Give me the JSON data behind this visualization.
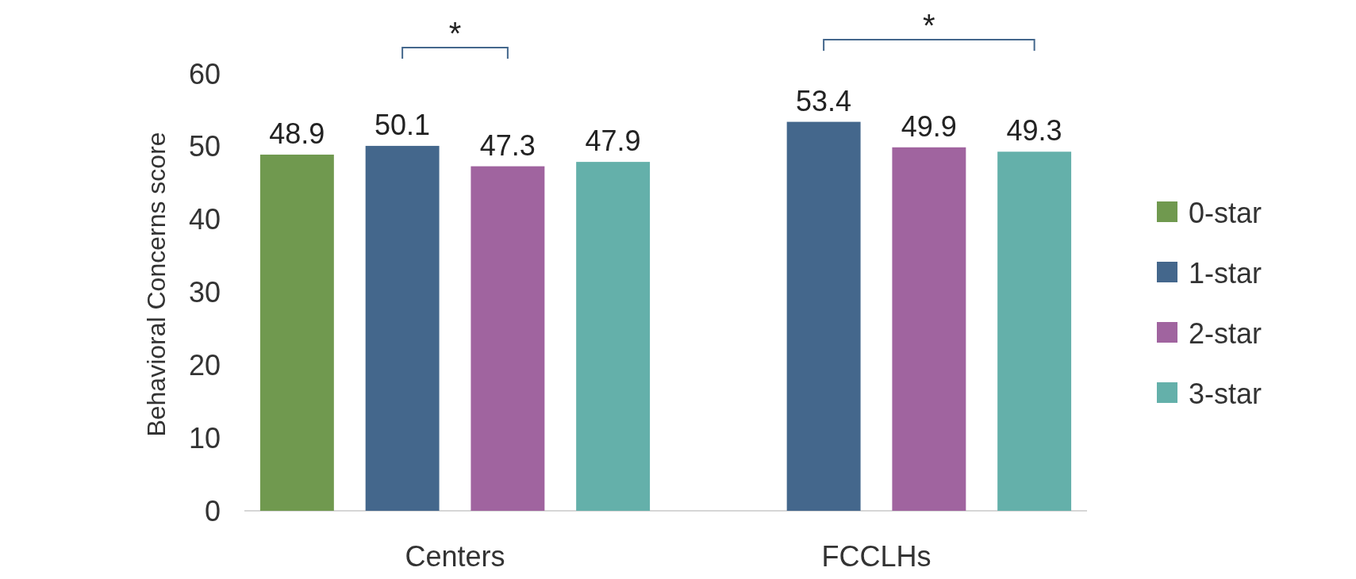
{
  "chart_data": {
    "type": "bar",
    "ylabel": "Behavioral Concerns score",
    "categories": [
      "Centers",
      "FCCLHs"
    ],
    "series": [
      {
        "name": "0-star",
        "color": "#70994f",
        "values": [
          48.9,
          null
        ]
      },
      {
        "name": "1-star",
        "color": "#44678c",
        "values": [
          50.1,
          53.4
        ]
      },
      {
        "name": "2-star",
        "color": "#a0649f",
        "values": [
          47.3,
          49.9
        ]
      },
      {
        "name": "3-star",
        "color": "#64b0aa",
        "values": [
          47.9,
          49.3
        ]
      }
    ],
    "ylim": [
      0,
      60
    ],
    "yticks": [
      0,
      10,
      20,
      30,
      40,
      50,
      60
    ],
    "data_labels": true,
    "legend": "right",
    "annotations": [
      "*",
      "*"
    ]
  }
}
